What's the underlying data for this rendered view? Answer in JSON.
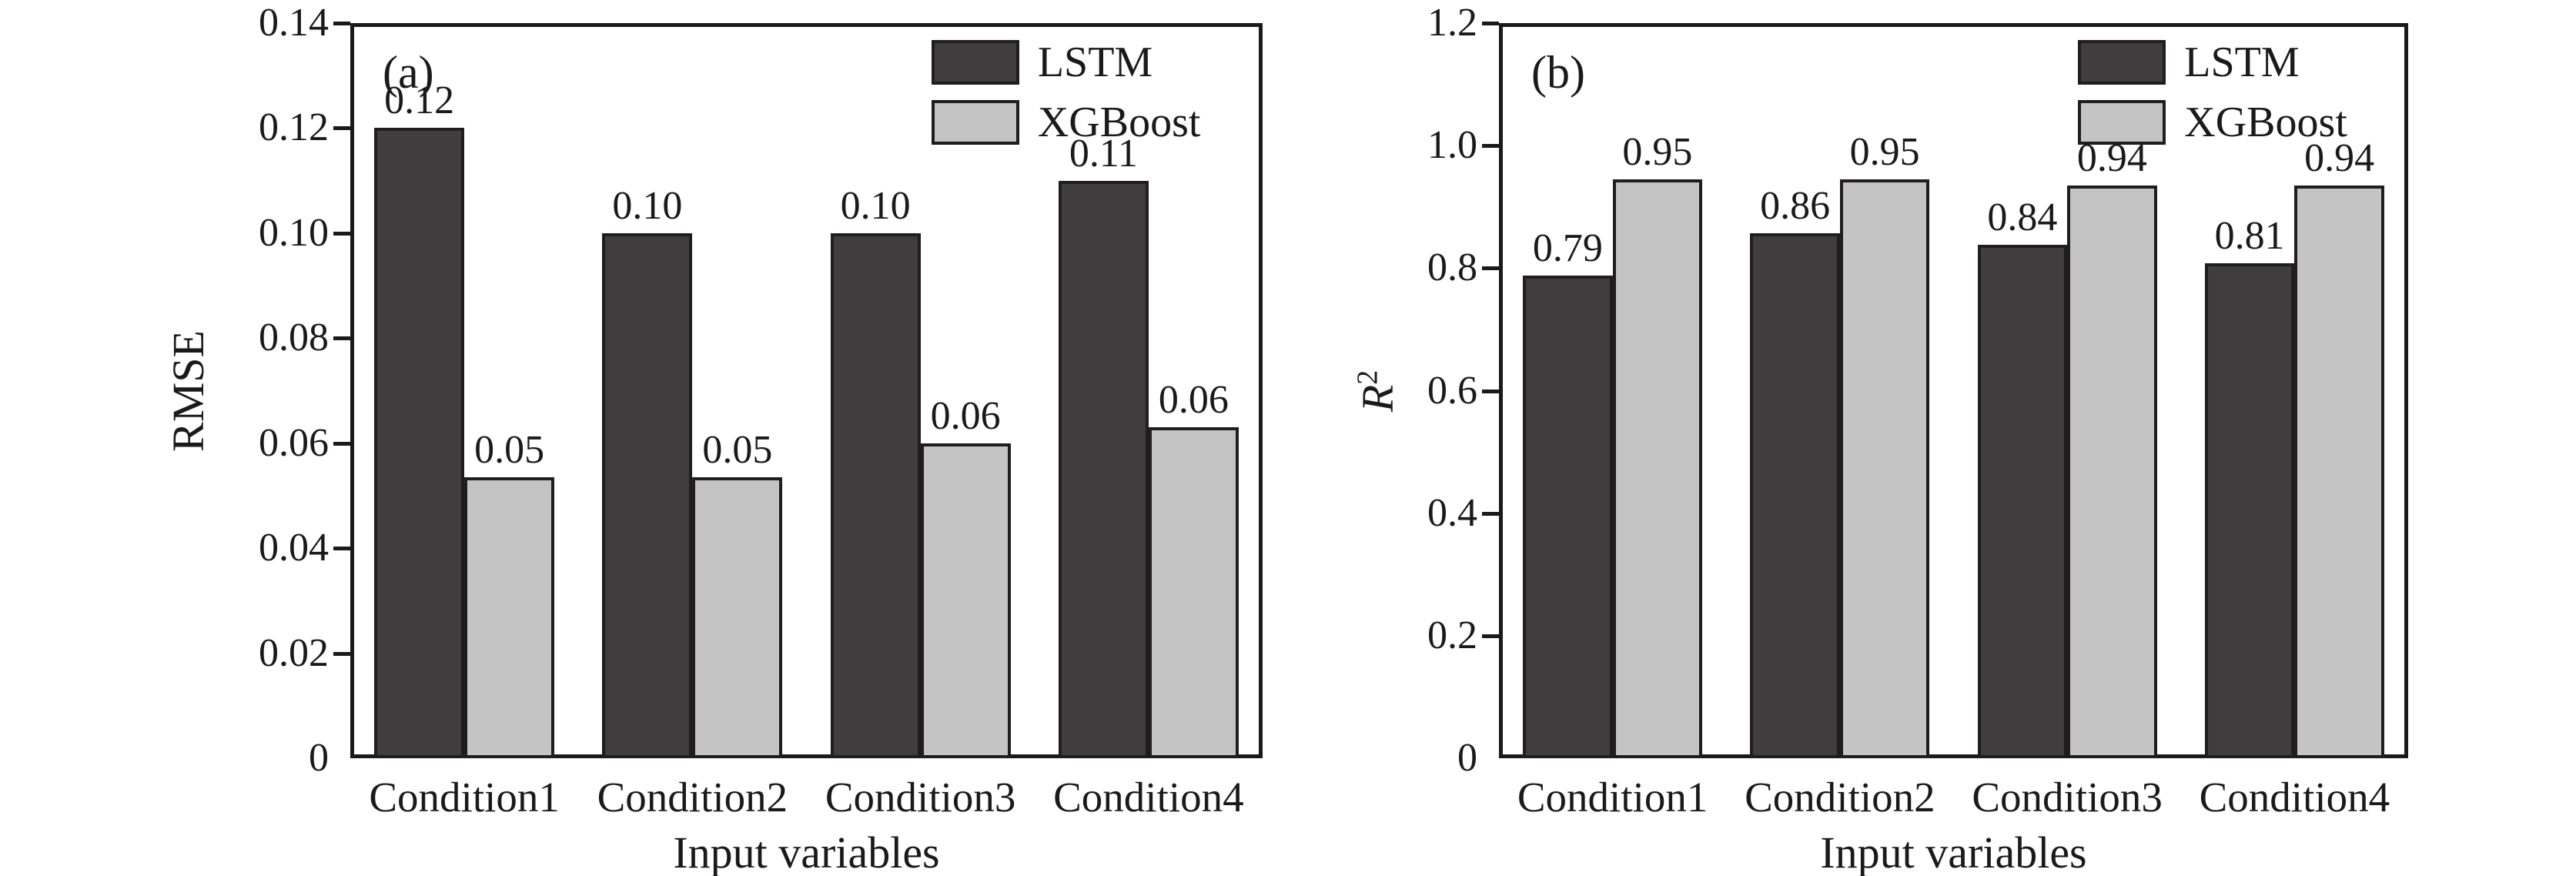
{
  "colors": {
    "background": "#ffffff",
    "axis": "#1a1a1a",
    "lstm_fill": "#3f3d3e",
    "xgboost_fill": "#c5c4c4"
  },
  "chart_data": [
    {
      "type": "bar",
      "panel_label": "(a)",
      "xlabel": "Input variables",
      "ylabel": {
        "base": "RMSE",
        "sup": "",
        "italic": false
      },
      "categories": [
        "Condition1",
        "Condition2",
        "Condition3",
        "Condition4"
      ],
      "series": [
        {
          "name": "LSTM",
          "color": "#3f3d3e",
          "values": [
            0.12,
            0.1,
            0.1,
            0.11
          ],
          "value_labels": [
            "0.12",
            "0.10",
            "0.10",
            "0.11"
          ],
          "drawn_values": [
            0.12,
            0.1,
            0.1,
            0.11
          ]
        },
        {
          "name": "XGBoost",
          "color": "#c5c4c4",
          "values": [
            0.05,
            0.05,
            0.06,
            0.06
          ],
          "value_labels": [
            "0.05",
            "0.05",
            "0.06",
            "0.06"
          ],
          "drawn_values": [
            0.0535,
            0.0535,
            0.06,
            0.063
          ]
        }
      ],
      "ylim": [
        0,
        0.14
      ],
      "ytick_values": [
        0,
        0.02,
        0.04,
        0.06,
        0.08,
        0.1,
        0.12,
        0.14
      ],
      "ytick_labels": [
        "0",
        "0.02",
        "0.04",
        "0.06",
        "0.08",
        "0.10",
        "0.12",
        "0.14"
      ],
      "legend": [
        "LSTM",
        "XGBoost"
      ],
      "legend_position": "top-right",
      "grid": false
    },
    {
      "type": "bar",
      "panel_label": "(b)",
      "xlabel": "Input variables",
      "ylabel": {
        "base": "R",
        "sup": "2",
        "italic": true
      },
      "categories": [
        "Condition1",
        "Condition2",
        "Condition3",
        "Condition4"
      ],
      "series": [
        {
          "name": "LSTM",
          "color": "#3f3d3e",
          "values": [
            0.79,
            0.86,
            0.84,
            0.81
          ],
          "value_labels": [
            "0.79",
            "0.86",
            "0.84",
            "0.81"
          ],
          "drawn_values": [
            0.788,
            0.857,
            0.838,
            0.808
          ]
        },
        {
          "name": "XGBoost",
          "color": "#c5c4c4",
          "values": [
            0.95,
            0.95,
            0.94,
            0.94
          ],
          "value_labels": [
            "0.95",
            "0.95",
            "0.94",
            "0.94"
          ],
          "drawn_values": [
            0.945,
            0.945,
            0.935,
            0.935
          ]
        }
      ],
      "ylim": [
        0,
        1.2
      ],
      "ytick_values": [
        0,
        0.2,
        0.4,
        0.6,
        0.8,
        1.0,
        1.2
      ],
      "ytick_labels": [
        "0",
        "0.2",
        "0.4",
        "0.6",
        "0.8",
        "1.0",
        "1.2"
      ],
      "legend": [
        "LSTM",
        "XGBoost"
      ],
      "legend_position": "top-right",
      "grid": false
    }
  ]
}
